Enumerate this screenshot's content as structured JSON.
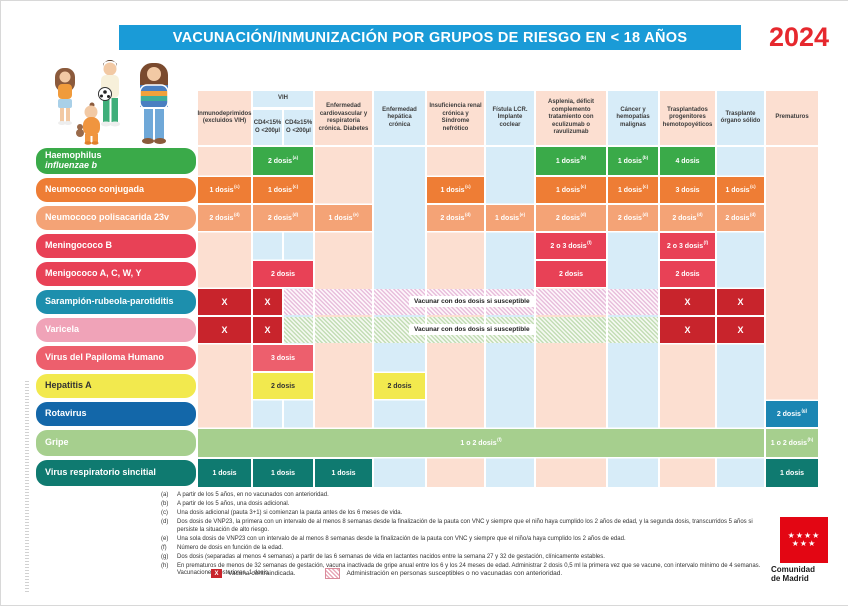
{
  "title": "VACUNACIÓN/INMUNIZACIÓN POR GRUPOS DE RIESGO EN < 18 AÑOS",
  "year": "2024",
  "palette": {
    "title_bar": "#1a9bd7",
    "year_red": "#e6282e",
    "stripe_peach": "#fcdfd1",
    "stripe_blue": "#d7ecf8",
    "header_text": "#3c3c3c",
    "contraindicated_red": "#c8242c",
    "logo_red": "#e30613"
  },
  "header": {
    "vih_group_label": "VIH",
    "columns": [
      {
        "id": "c1",
        "label": "Inmunodeprimidos (excluidos VIH)"
      },
      {
        "id": "c2",
        "label": "CD4<15% O <200µl",
        "group": "VIH"
      },
      {
        "id": "c3",
        "label": "CD4≥15% O <200µl",
        "group": "VIH"
      },
      {
        "id": "c4",
        "label": "Enfermedad cardiovascular y respiratoria crónica. Diabetes"
      },
      {
        "id": "c5",
        "label": "Enfermedad hepática crónica"
      },
      {
        "id": "c6",
        "label": "Insuficiencia renal crónica y Síndrome nefrótico"
      },
      {
        "id": "c7",
        "label": "Fístula LCR. Implante coclear"
      },
      {
        "id": "c8",
        "label": "Asplenia, déficit complemento tratamiento con eculizumab o ravulizumab"
      },
      {
        "id": "c9",
        "label": "Cáncer y hemopatías malignas"
      },
      {
        "id": "c10",
        "label": "Trasplantados progenitores hemotopoyéticos"
      },
      {
        "id": "c11",
        "label": "Trasplante órgano sólido"
      },
      {
        "id": "c12",
        "label": "Prematuros"
      }
    ]
  },
  "rows": [
    {
      "id": "haemophilus",
      "label_lines": [
        "Haemophilus",
        "influenzae b"
      ],
      "italic_line2": true,
      "label_color": "#3aaa49",
      "cell_color": "#3aaa49",
      "cells": [
        {
          "cols": "c2-c3",
          "text": "2 dosis",
          "sup": "(a)"
        },
        {
          "cols": "c8",
          "text": "1 dosis",
          "sup": "(b)"
        },
        {
          "cols": "c9",
          "text": "1 dosis",
          "sup": "(b)"
        },
        {
          "cols": "c10",
          "text": "4 dosis"
        }
      ]
    },
    {
      "id": "neumococo-conjugada",
      "label_lines": [
        "Neumococo conjugada"
      ],
      "label_color": "#ee7d35",
      "cell_color": "#ee7d35",
      "cells": [
        {
          "cols": "c1",
          "text": "1 dosis",
          "sup": "(c)"
        },
        {
          "cols": "c2-c3",
          "text": "1 dosis",
          "sup": "(c)"
        },
        {
          "cols": "c6",
          "text": "1 dosis",
          "sup": "(c)"
        },
        {
          "cols": "c8",
          "text": "1 dosis",
          "sup": "(c)"
        },
        {
          "cols": "c9",
          "text": "1 dosis",
          "sup": "(c)"
        },
        {
          "cols": "c10",
          "text": "3 dosis"
        },
        {
          "cols": "c11",
          "text": "1 dosis",
          "sup": "(c)"
        }
      ]
    },
    {
      "id": "neumococo-polisacarida-23v",
      "label_lines": [
        "Neumococo polisacarida 23v"
      ],
      "label_color": "#f4a376",
      "cell_color": "#f4a376",
      "cells": [
        {
          "cols": "c1",
          "text": "2 dosis",
          "sup": "(d)"
        },
        {
          "cols": "c2-c3",
          "text": "2 dosis",
          "sup": "(d)"
        },
        {
          "cols": "c4",
          "text": "1 dosis",
          "sup": "(e)"
        },
        {
          "cols": "c6",
          "text": "2 dosis",
          "sup": "(d)"
        },
        {
          "cols": "c7",
          "text": "1 dosis",
          "sup": "(e)"
        },
        {
          "cols": "c8",
          "text": "2 dosis",
          "sup": "(d)"
        },
        {
          "cols": "c9",
          "text": "2 dosis",
          "sup": "(d)"
        },
        {
          "cols": "c10",
          "text": "2 dosis",
          "sup": "(d)"
        },
        {
          "cols": "c11",
          "text": "2 dosis",
          "sup": "(d)"
        }
      ]
    },
    {
      "id": "meningococo-b",
      "label_lines": [
        "Meningococo B"
      ],
      "label_color": "#e84156",
      "cell_color": "#e84156",
      "cells": [
        {
          "cols": "c8",
          "text": "2 o 3 dosis",
          "sup": "(f)"
        },
        {
          "cols": "c10",
          "text": "2 o 3 dosis",
          "sup": "(f)"
        }
      ]
    },
    {
      "id": "menigococo-acwy",
      "label_lines": [
        "Menigococo A, C, W, Y"
      ],
      "label_color": "#e84156",
      "cell_color": "#e84156",
      "cells": [
        {
          "cols": "c2-c3",
          "text": "2 dosis"
        },
        {
          "cols": "c8",
          "text": "2 dosis"
        },
        {
          "cols": "c10",
          "text": "2 dosis"
        }
      ]
    },
    {
      "id": "sarampion-rubeola-parotiditis",
      "label_lines": [
        "Sarampión-rubeola-parotiditis"
      ],
      "label_color": "#1d8fad",
      "cell_color": "#1d8fad",
      "cells": [
        {
          "cols": "c1",
          "x": true
        },
        {
          "cols": "c2",
          "x": true
        },
        {
          "cols": "c3-c9",
          "hatch": "pink",
          "note": "Vacunar con dos dosis si susceptible"
        },
        {
          "cols": "c10",
          "x": true
        },
        {
          "cols": "c11",
          "x": true
        }
      ]
    },
    {
      "id": "varicela",
      "label_lines": [
        "Varicela"
      ],
      "label_color": "#f0a3b8",
      "cell_color": "#f0a3b8",
      "cells": [
        {
          "cols": "c1",
          "x": true
        },
        {
          "cols": "c2",
          "x": true
        },
        {
          "cols": "c3-c9",
          "hatch": "green",
          "note": "Vacunar con dos dosis si susceptible"
        },
        {
          "cols": "c10",
          "x": true
        },
        {
          "cols": "c11",
          "x": true
        }
      ]
    },
    {
      "id": "virus-del-papiloma-humano",
      "label_lines": [
        "Virus del Papiloma Humano"
      ],
      "label_color": "#ed5f6d",
      "cell_color": "#ed5f6d",
      "cells": [
        {
          "cols": "c2-c3",
          "text": "3 dosis"
        }
      ]
    },
    {
      "id": "hepatitis-a",
      "label_lines": [
        "Hepatitis A"
      ],
      "label_text_color": "#333",
      "cell_text_color": "#333",
      "label_color": "#f2e94e",
      "cell_color": "#f2e94e",
      "cells": [
        {
          "cols": "c2-c3",
          "text": "2 dosis"
        },
        {
          "cols": "c5",
          "text": "2 dosis"
        }
      ]
    },
    {
      "id": "rotavirus",
      "label_lines": [
        "Rotavirus"
      ],
      "label_color": "#1367a9",
      "cell_color": "#1b86b3",
      "cells": [
        {
          "cols": "c12",
          "text": "2 dosis",
          "sup": "(g)"
        }
      ]
    },
    {
      "id": "gripe",
      "label_lines": [
        "Gripe"
      ],
      "label_color": "#a6cf8e",
      "cell_color": "#a6cf8e",
      "cells": [
        {
          "cols": "c1-c11",
          "text": "1 o 2 dosis",
          "sup": "(f)"
        },
        {
          "cols": "c12",
          "text": "1 o 2 dosis",
          "sup": "(h)"
        }
      ]
    },
    {
      "id": "virus-respiratorio-sincitial",
      "label_lines": [
        "Virus respiratorio sincitial"
      ],
      "label_color": "#0f7a70",
      "cell_color": "#0f7a70",
      "cells": [
        {
          "cols": "c1",
          "text": "1 dosis"
        },
        {
          "cols": "c2-c3",
          "text": "1 dosis"
        },
        {
          "cols": "c4",
          "text": "1 dosis"
        },
        {
          "cols": "c12",
          "text": "1 dosis"
        }
      ]
    }
  ],
  "footnotes": [
    {
      "key": "(a)",
      "text": "A partir de los 5 años, en no vacunados con anterioridad."
    },
    {
      "key": "(b)",
      "text": "A partir de los 5 años, una dosis adicional."
    },
    {
      "key": "(c)",
      "text": "Una dosis adicional (pauta 3+1) si comienzan la pauta antes de los 6 meses de vida."
    },
    {
      "key": "(d)",
      "text": "Dos dosis de VNP23, la primera con un intervalo de al menos 8 semanas desde la finalización de la pauta con VNC y siempre que el niño haya cumplido los 2 años de edad, y la segunda dosis, transcurridos 5 años si persiste la situación de alto riesgo."
    },
    {
      "key": "(e)",
      "text": "Una sola dosis de VNP23 con un intervalo de al menos 8 semanas desde la finalización de la pauta con VNC y siempre que el niño/a haya cumplido los 2 años de edad."
    },
    {
      "key": "(f)",
      "text": "Número de dosis en función de la edad."
    },
    {
      "key": "(g)",
      "text": "Dos dosis (separadas al menos 4 semanas) a partir de las 6 semanas de vida en lactantes nacidos entre la semana 27 y 32 de gestación, clínicamente estables."
    },
    {
      "key": "(h)",
      "text": "En prematuros de menos de 32 semanas de gestación, vacuna inactivada de gripe anual entre los 6 y los 24 meses de edad. Administrar 2 dosis 0,5 ml la primera vez que se vacune, con intervalo mínimo de 4 semanas. Vacunaciones posteriores, 1 dosis."
    }
  ],
  "legend": {
    "x_symbol": "X",
    "x_label": "Vacuna contraindicada.",
    "hatch_label": "Administración en personas susceptibles o no vacunadas con anterioridad."
  },
  "logo": {
    "stars_row1": "★★★★",
    "stars_row2": "★★★",
    "line1": "Comunidad",
    "line2": "de Madrid"
  }
}
